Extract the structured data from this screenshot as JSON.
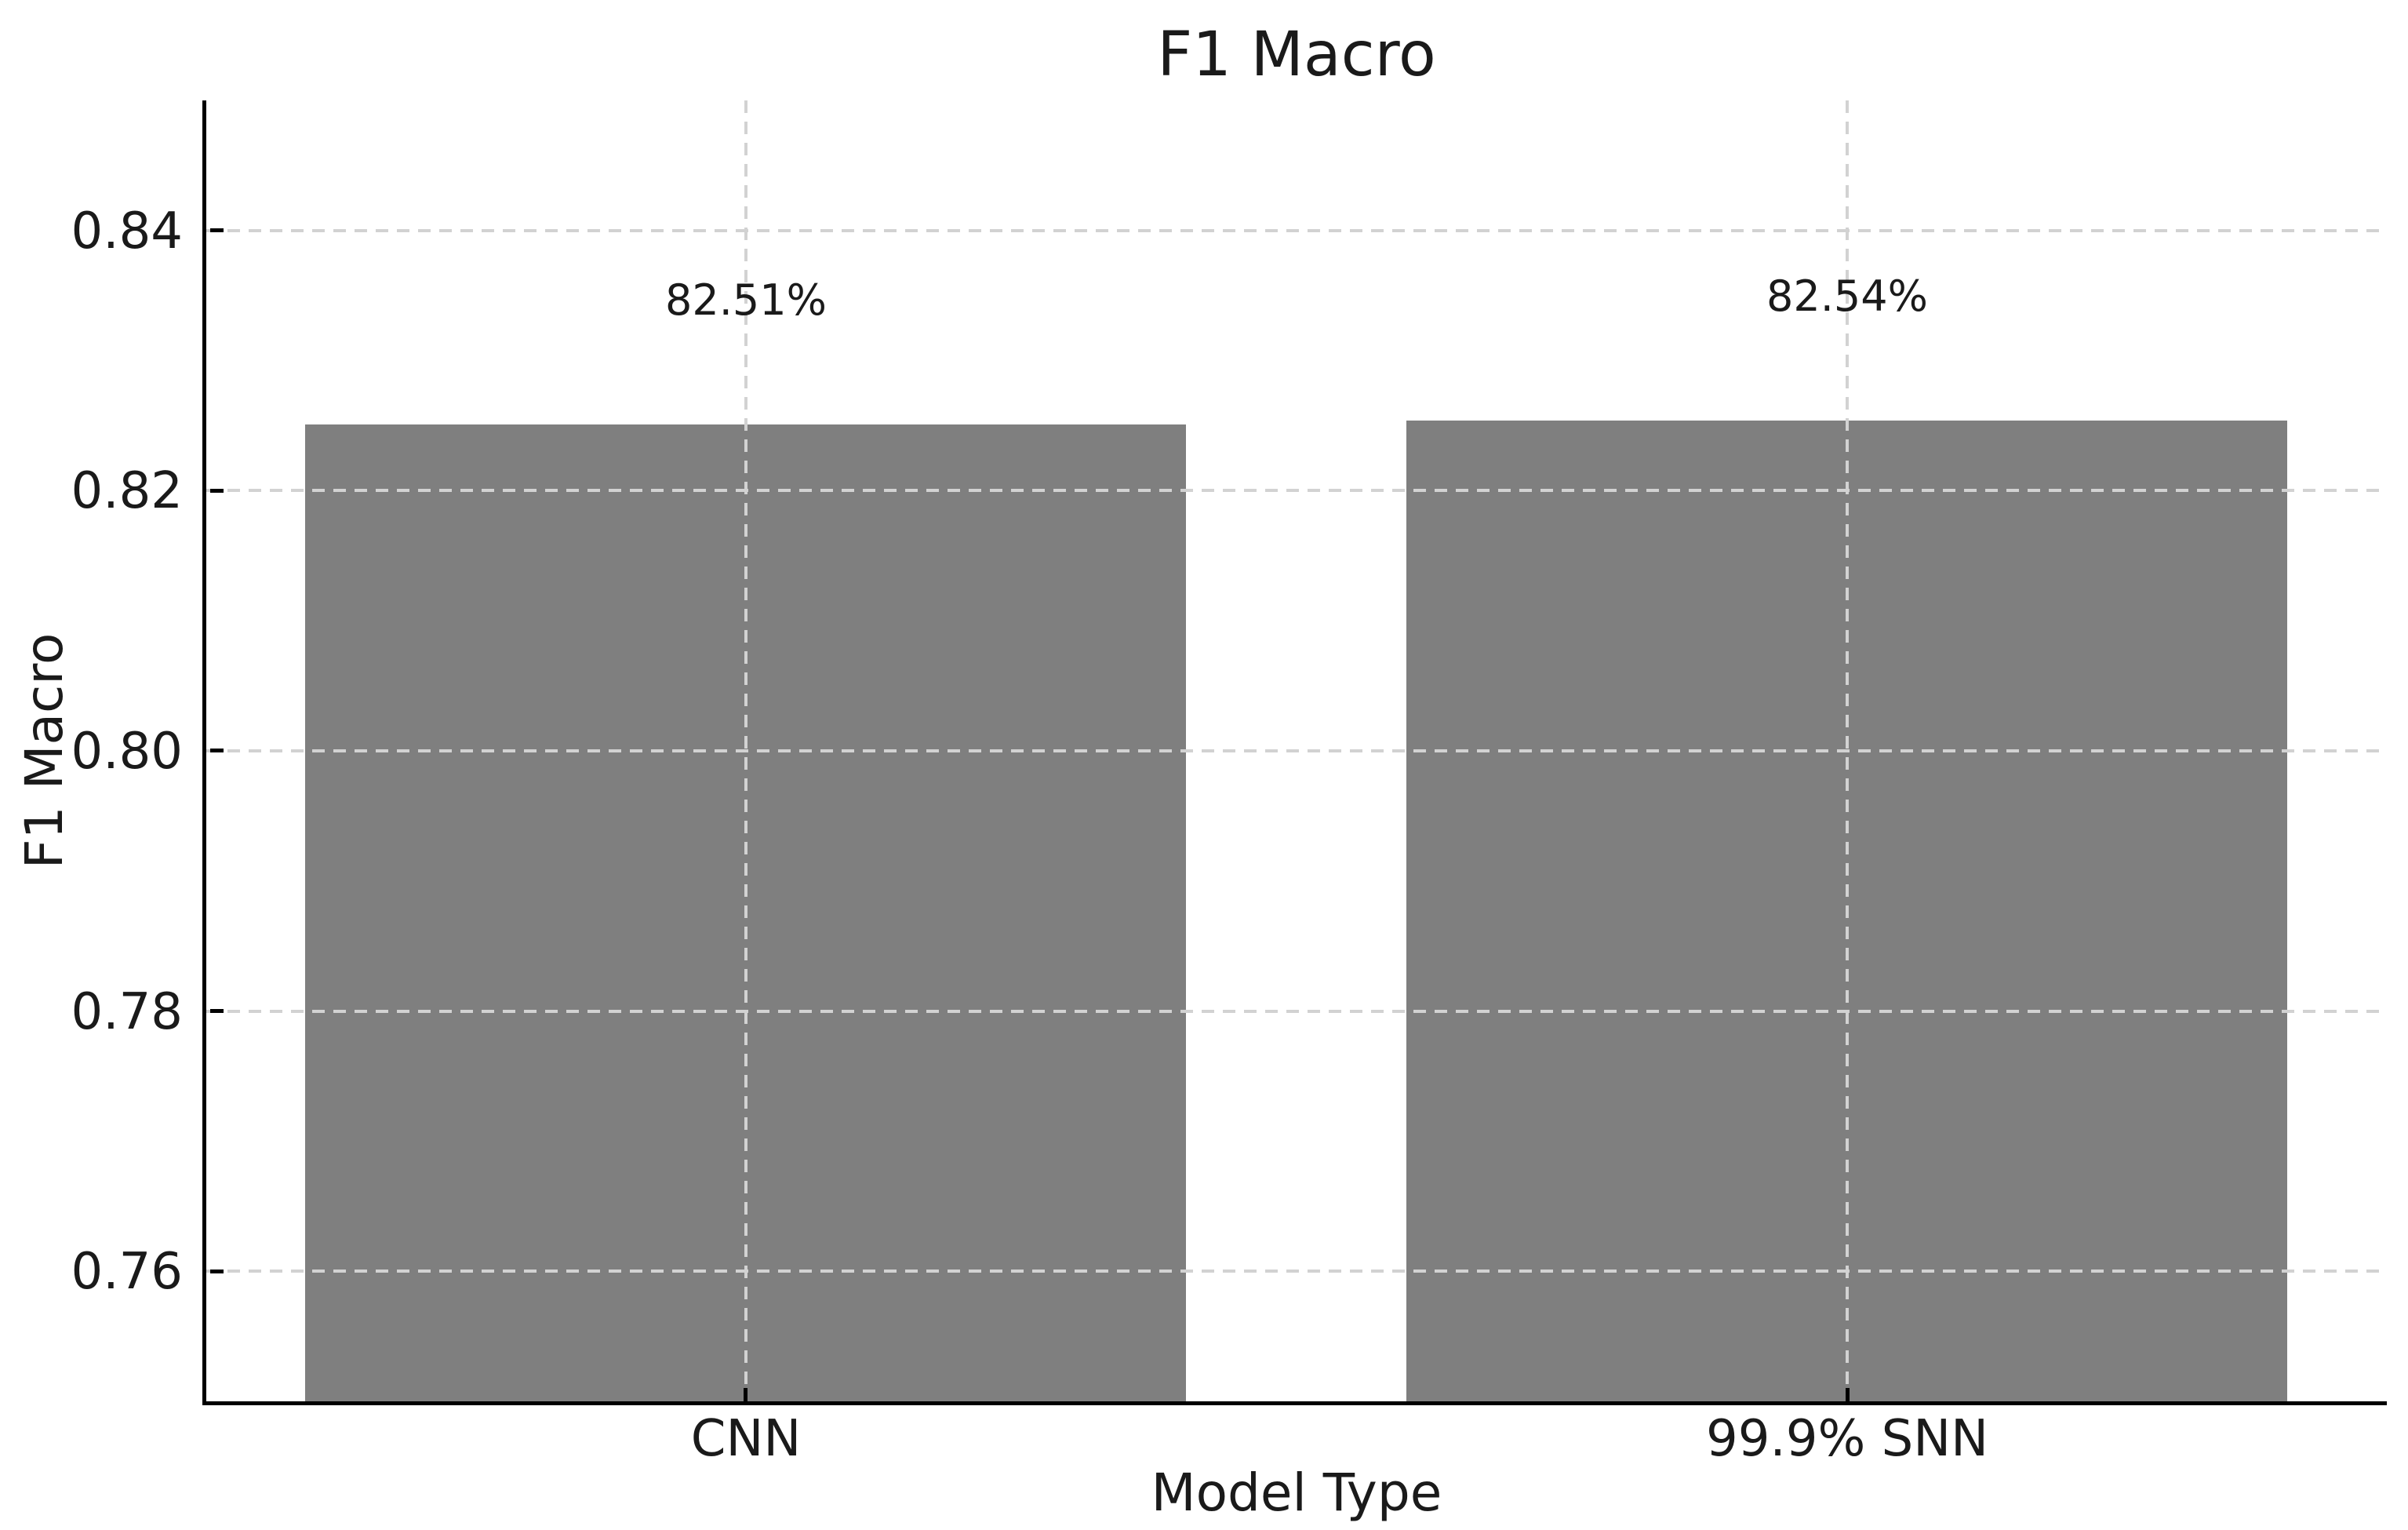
{
  "chart_data": {
    "type": "bar",
    "title": "F1 Macro",
    "xlabel": "Model Type",
    "ylabel": "F1 Macro",
    "categories": [
      "CNN",
      "99.9% SNN"
    ],
    "values": [
      0.8251,
      0.8254
    ],
    "bar_value_labels": [
      "82.51%",
      "82.54%"
    ],
    "ylim": [
      0.75,
      0.85
    ],
    "xlim": [
      -0.49,
      1.49
    ],
    "yticks": [
      0.76,
      0.78,
      0.8,
      0.82,
      0.84
    ],
    "ytick_labels": [
      "0.76",
      "0.78",
      "0.80",
      "0.82",
      "0.84"
    ],
    "bar_width_units": 0.8,
    "grid": true,
    "grid_style": "dashed",
    "legend": "none",
    "colors": {
      "bar": "#7f7f7f",
      "grid": "#d2d2d2",
      "spine": "#000000",
      "text": "#1a1a1a",
      "background": "#ffffff"
    }
  }
}
